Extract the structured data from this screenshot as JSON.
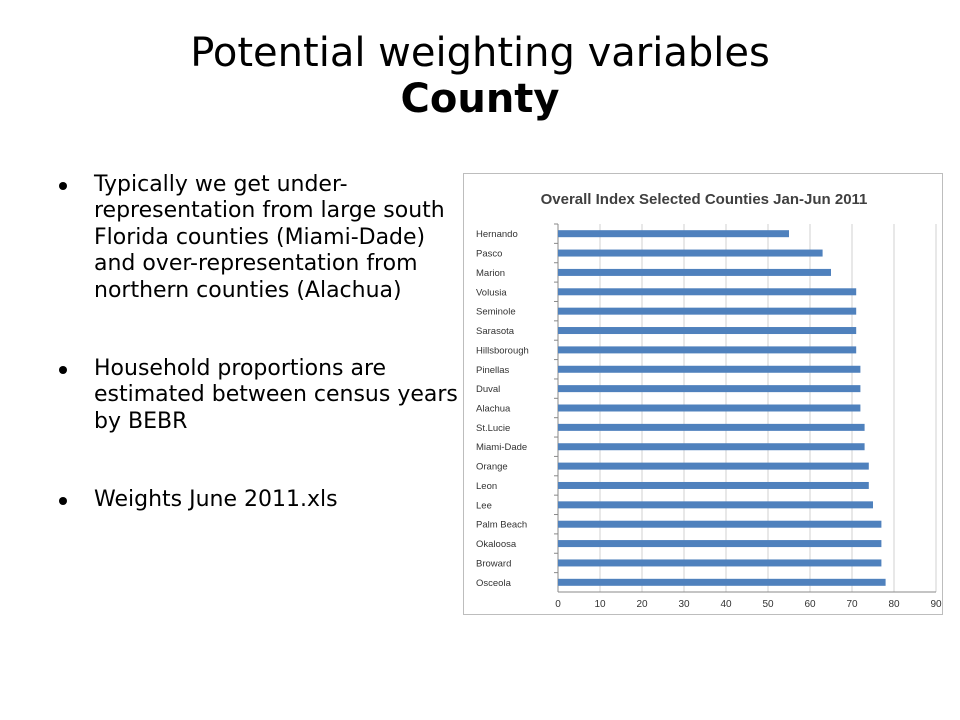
{
  "slide": {
    "title_line1": "Potential weighting variables",
    "title_line2": "County",
    "bullets": [
      "Typically we get under-representation from large south Florida counties (Miami-Dade) and over-representation from northern counties (Alachua)",
      "Household proportions are estimated between census years by BEBR",
      "Weights June 2011.xls"
    ]
  },
  "chart_data": {
    "type": "bar",
    "orientation": "horizontal",
    "title": "Overall Index Selected Counties Jan-Jun 2011",
    "categories": [
      "Hernando",
      "Pasco",
      "Marion",
      "Volusia",
      "Seminole",
      "Sarasota",
      "Hillsborough",
      "Pinellas",
      "Duval",
      "Alachua",
      "St.Lucie",
      "Miami-Dade",
      "Orange",
      "Leon",
      "Lee",
      "Palm Beach",
      "Okaloosa",
      "Broward",
      "Osceola"
    ],
    "values": [
      55,
      63,
      65,
      71,
      71,
      71,
      71,
      72,
      72,
      72,
      73,
      73,
      74,
      74,
      75,
      77,
      77,
      77,
      78
    ],
    "xlim": [
      0,
      90
    ],
    "xticks": [
      0,
      10,
      20,
      30,
      40,
      50,
      60,
      70,
      80,
      90
    ],
    "grid": "vertical",
    "bar_color": "#4f81bd"
  }
}
